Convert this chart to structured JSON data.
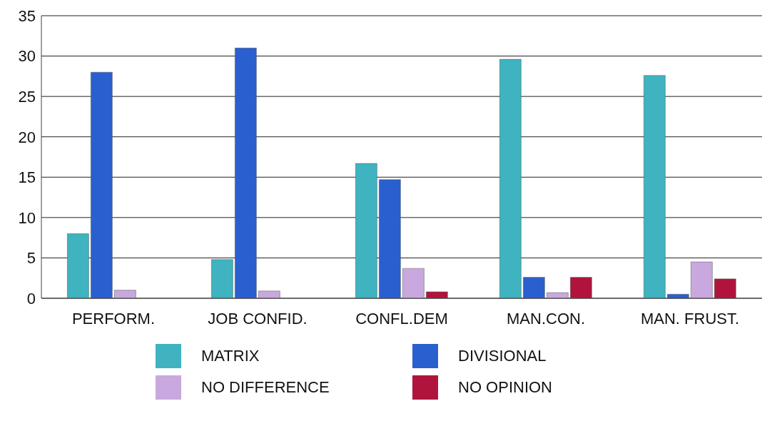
{
  "chart_data": {
    "type": "bar",
    "categories": [
      "PERFORM.",
      "JOB CONFID.",
      "CONFL.DEM",
      "MAN.CON.",
      "MAN. FRUST."
    ],
    "series": [
      {
        "name": "MATRIX",
        "color": "#3fb3c0",
        "values": [
          8,
          4.8,
          16.7,
          29.6,
          27.6
        ]
      },
      {
        "name": "DIVISIONAL",
        "color": "#2a5fd0",
        "values": [
          28,
          31,
          14.7,
          2.6,
          0.5
        ]
      },
      {
        "name": "NO DIFFERENCE",
        "color": "#c8a8de",
        "values": [
          1,
          0.9,
          3.7,
          0.7,
          4.5
        ]
      },
      {
        "name": "NO OPINION",
        "color": "#b0143c",
        "values": [
          0,
          0,
          0.8,
          2.6,
          2.4
        ]
      }
    ],
    "ylim": [
      0,
      35
    ],
    "yticks": [
      0,
      5,
      10,
      15,
      20,
      25,
      30,
      35
    ],
    "grid": "y",
    "legend": "bottom"
  }
}
